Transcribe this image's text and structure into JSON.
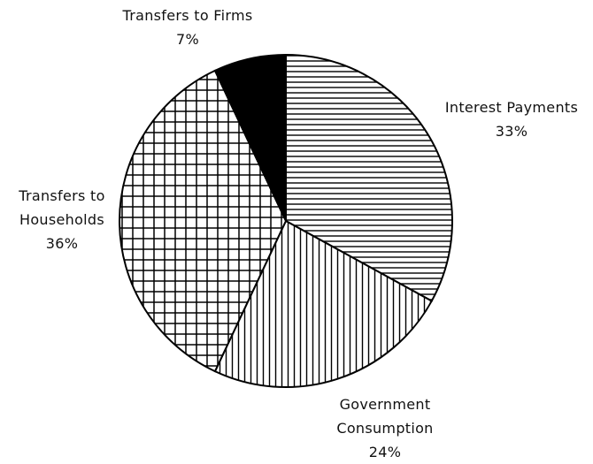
{
  "chart_data": {
    "type": "pie",
    "categories": [
      "Interest Payments",
      "Government Consumption",
      "Transfers to Households",
      "Transfers to Firms"
    ],
    "values": [
      33,
      24,
      36,
      7
    ],
    "value_labels": [
      "33%",
      "24%",
      "36%",
      "7%"
    ],
    "patterns": [
      "horizontal",
      "vertical",
      "grid",
      "solid"
    ],
    "color": "#000000"
  }
}
